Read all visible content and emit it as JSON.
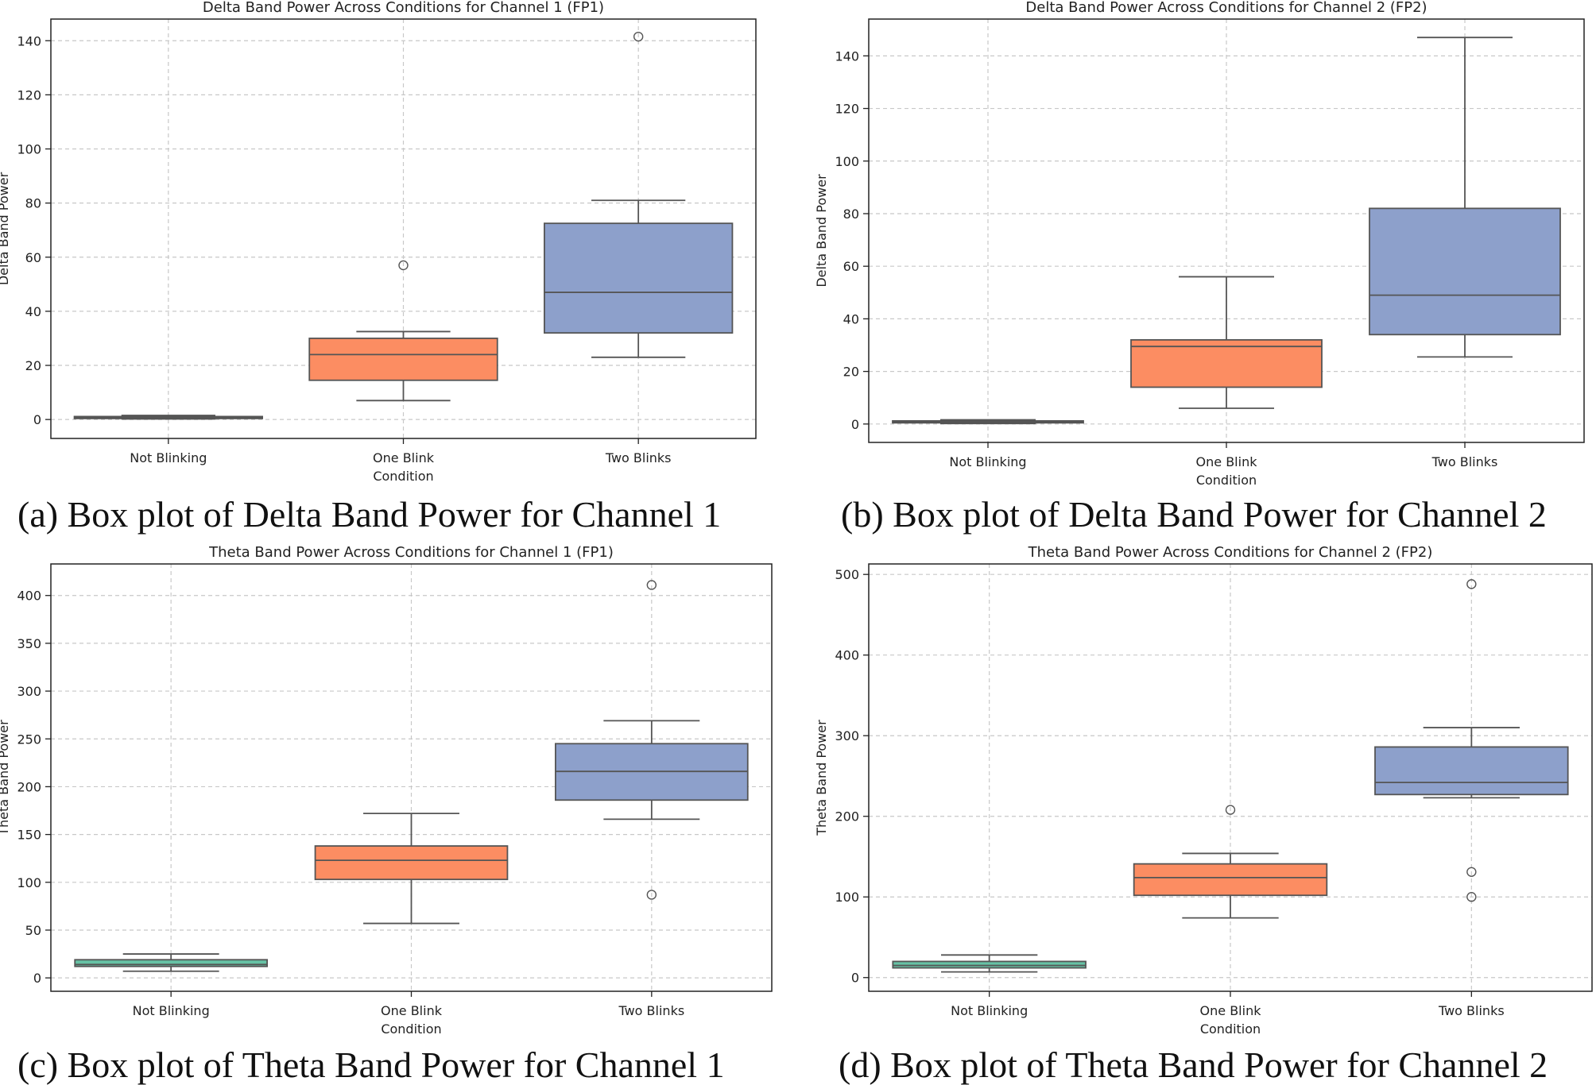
{
  "figures": [
    {
      "caption": "(a) Box plot of Delta Band Power for Channel 1"
    },
    {
      "caption": "(b) Box plot of Delta Band Power for Channel 2"
    },
    {
      "caption": "(c) Box plot of Theta Band Power for Channel 1"
    },
    {
      "caption": "(d) Box plot of Theta Band Power for Channel 2"
    }
  ],
  "colors": {
    "not_blinking": "#66c2a5",
    "one_blink": "#fc8d62",
    "two_blinks": "#8da0cb",
    "line": "#555555"
  },
  "chart_data": [
    {
      "type": "box",
      "title": "Delta Band Power Across Conditions for Channel 1 (FP1)",
      "xlabel": "Condition",
      "ylabel": "Delta Band Power",
      "categories": [
        "Not Blinking",
        "One Blink",
        "Two Blinks"
      ],
      "ylim": [
        -7,
        148
      ],
      "yticks": [
        0,
        20,
        40,
        60,
        80,
        100,
        120,
        140
      ],
      "grid": true,
      "boxes": [
        {
          "whisker_low": 0.2,
          "q1": 0.5,
          "median": 0.8,
          "q3": 1.1,
          "whisker_high": 1.5,
          "outliers": []
        },
        {
          "whisker_low": 7,
          "q1": 14.5,
          "median": 24,
          "q3": 30,
          "whisker_high": 32.5,
          "outliers": [
            57
          ]
        },
        {
          "whisker_low": 23,
          "q1": 32,
          "median": 47,
          "q3": 72.5,
          "whisker_high": 81,
          "outliers": [
            141.5
          ]
        }
      ]
    },
    {
      "type": "box",
      "title": "Delta Band Power Across Conditions for Channel 2 (FP2)",
      "xlabel": "Condition",
      "ylabel": "Delta Band Power",
      "categories": [
        "Not Blinking",
        "One Blink",
        "Two Blinks"
      ],
      "ylim": [
        -7,
        154
      ],
      "yticks": [
        0,
        20,
        40,
        60,
        80,
        100,
        120,
        140
      ],
      "grid": true,
      "boxes": [
        {
          "whisker_low": 0.2,
          "q1": 0.5,
          "median": 0.9,
          "q3": 1.2,
          "whisker_high": 1.6,
          "outliers": []
        },
        {
          "whisker_low": 6,
          "q1": 14,
          "median": 29.5,
          "q3": 32,
          "whisker_high": 56,
          "outliers": []
        },
        {
          "whisker_low": 25.5,
          "q1": 34,
          "median": 49,
          "q3": 82,
          "whisker_high": 147,
          "outliers": []
        }
      ]
    },
    {
      "type": "box",
      "title": "Theta Band Power Across Conditions for Channel 1 (FP1)",
      "xlabel": "Condition",
      "ylabel": "Theta Band Power",
      "categories": [
        "Not Blinking",
        "One Blink",
        "Two Blinks"
      ],
      "ylim": [
        -14,
        433
      ],
      "yticks": [
        0,
        50,
        100,
        150,
        200,
        250,
        300,
        350,
        400
      ],
      "grid": true,
      "boxes": [
        {
          "whisker_low": 7,
          "q1": 12,
          "median": 14,
          "q3": 19,
          "whisker_high": 25,
          "outliers": []
        },
        {
          "whisker_low": 57,
          "q1": 103,
          "median": 123,
          "q3": 138,
          "whisker_high": 172,
          "outliers": []
        },
        {
          "whisker_low": 166,
          "q1": 186,
          "median": 216,
          "q3": 245,
          "whisker_high": 269,
          "outliers": [
            411,
            87
          ]
        }
      ]
    },
    {
      "type": "box",
      "title": "Theta Band Power Across Conditions for Channel 2 (FP2)",
      "xlabel": "Condition",
      "ylabel": "Theta Band Power",
      "categories": [
        "Not Blinking",
        "One Blink",
        "Two Blinks"
      ],
      "ylim": [
        -17,
        513
      ],
      "yticks": [
        0,
        100,
        200,
        300,
        400,
        500
      ],
      "grid": true,
      "boxes": [
        {
          "whisker_low": 7,
          "q1": 12,
          "median": 15,
          "q3": 20,
          "whisker_high": 28,
          "outliers": []
        },
        {
          "whisker_low": 74,
          "q1": 102,
          "median": 124,
          "q3": 141,
          "whisker_high": 154,
          "outliers": [
            208
          ]
        },
        {
          "whisker_low": 223,
          "q1": 227,
          "median": 242,
          "q3": 286,
          "whisker_high": 310,
          "outliers": [
            488,
            131,
            100
          ]
        }
      ]
    }
  ]
}
